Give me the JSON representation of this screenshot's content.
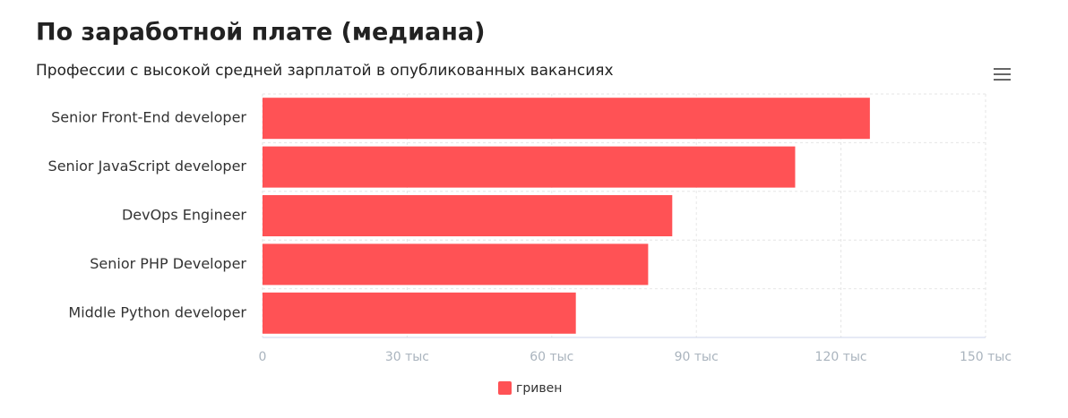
{
  "chart_data": {
    "type": "hbar",
    "title": "По заработной плате (медиана)",
    "subtitle": "Профессии с высокой средней зарплатой в опубликованных вакансиях",
    "categories": [
      "Senior Front-End developer",
      "Senior JavaScript developer",
      "DevOps Engineer",
      "Senior PHP Developer",
      "Middle Python developer"
    ],
    "series": [
      {
        "name": "гривен",
        "color": "#ff5255",
        "values": [
          126000,
          110500,
          85000,
          80000,
          65000
        ]
      }
    ],
    "xlim": [
      0,
      150000
    ],
    "xticks": [
      0,
      {
        "value": 30000,
        "label": "30 тыс"
      },
      {
        "value": 60000,
        "label": "60 тыс"
      },
      {
        "value": 90000,
        "label": "90 тыс"
      },
      {
        "value": 120000,
        "label": "120 тыс"
      },
      {
        "value": 150000,
        "label": "150 тыс"
      }
    ],
    "grid": true
  }
}
